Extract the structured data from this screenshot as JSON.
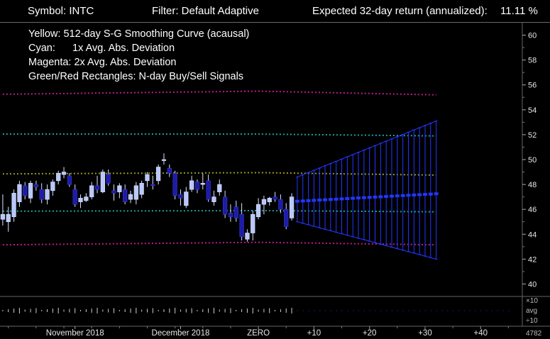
{
  "header": {
    "symbol": "Symbol: INTC",
    "filter": "Filter: Default Adaptive",
    "return_label": "Expected 32-day return (annualized):",
    "return_value": "11.11 %"
  },
  "legend": {
    "yellow": "Yellow: 512-day S-G Smoothing Curve (acausal)",
    "cyan": "Cyan:      1x Avg. Abs. Deviation",
    "magenta": "Magenta: 2x Avg. Abs. Deviation",
    "rects": "Green/Red Rectangles: N-day Buy/Sell Signals"
  },
  "colors": {
    "background": "#000000",
    "candle_up": "#b8c8ff",
    "candle_down": "#1c1ca8",
    "smooth": "#9a9a28",
    "dev1": "#1f9f9f",
    "dev2": "#b81e8c",
    "forecast": "#2436ff",
    "grid": "#666666"
  },
  "chart_data": {
    "type": "candlestick",
    "y_ticks": [
      40,
      42,
      44,
      46,
      48,
      50,
      52,
      54,
      56,
      58,
      60
    ],
    "ylim": [
      39,
      61
    ],
    "x_ticks": [
      {
        "label": "November 2018",
        "x": -33
      },
      {
        "label": "December 2018",
        "x": -14
      },
      {
        "label": "ZERO",
        "x": 0
      },
      {
        "label": "+10",
        "x": 10
      },
      {
        "label": "+20",
        "x": 20
      },
      {
        "label": "+30",
        "x": 30
      },
      {
        "label": "+40",
        "x": 40
      }
    ],
    "xlim": [
      -46.5,
      47.5
    ],
    "candles": [
      {
        "x": -46,
        "o": 45.2,
        "h": 47.2,
        "l": 44.7,
        "c": 45.6
      },
      {
        "x": -45,
        "o": 45.0,
        "h": 46.2,
        "l": 44.2,
        "c": 45.6
      },
      {
        "x": -44,
        "o": 45.4,
        "h": 47.6,
        "l": 45.0,
        "c": 47.3
      },
      {
        "x": -43,
        "o": 46.6,
        "h": 48.3,
        "l": 46.2,
        "c": 48.0
      },
      {
        "x": -42,
        "o": 47.9,
        "h": 48.2,
        "l": 46.8,
        "c": 47.1
      },
      {
        "x": -41,
        "o": 46.9,
        "h": 48.3,
        "l": 46.5,
        "c": 48.1
      },
      {
        "x": -40,
        "o": 48.0,
        "h": 48.3,
        "l": 47.5,
        "c": 47.8
      },
      {
        "x": -39,
        "o": 47.6,
        "h": 48.1,
        "l": 46.5,
        "c": 46.8
      },
      {
        "x": -38,
        "o": 46.8,
        "h": 48.0,
        "l": 46.4,
        "c": 47.6
      },
      {
        "x": -37,
        "o": 47.5,
        "h": 48.4,
        "l": 47.1,
        "c": 48.2
      },
      {
        "x": -36,
        "o": 48.3,
        "h": 49.1,
        "l": 48.0,
        "c": 48.9
      },
      {
        "x": -35,
        "o": 48.8,
        "h": 49.4,
        "l": 48.5,
        "c": 49.0
      },
      {
        "x": -34,
        "o": 48.7,
        "h": 48.9,
        "l": 47.8,
        "c": 48.0
      },
      {
        "x": -33,
        "o": 47.6,
        "h": 48.0,
        "l": 46.2,
        "c": 46.4
      },
      {
        "x": -32,
        "o": 46.6,
        "h": 47.2,
        "l": 46.1,
        "c": 46.9
      },
      {
        "x": -31,
        "o": 46.7,
        "h": 47.3,
        "l": 46.6,
        "c": 47.0
      },
      {
        "x": -30,
        "o": 47.0,
        "h": 48.2,
        "l": 46.8,
        "c": 47.9
      },
      {
        "x": -29,
        "o": 47.9,
        "h": 48.7,
        "l": 47.3,
        "c": 47.6
      },
      {
        "x": -28,
        "o": 47.4,
        "h": 49.2,
        "l": 47.3,
        "c": 49.0
      },
      {
        "x": -27,
        "o": 48.8,
        "h": 49.2,
        "l": 47.9,
        "c": 48.1
      },
      {
        "x": -26,
        "o": 47.5,
        "h": 48.0,
        "l": 46.7,
        "c": 47.3
      },
      {
        "x": -25,
        "o": 47.4,
        "h": 48.1,
        "l": 46.9,
        "c": 47.9
      },
      {
        "x": -24,
        "o": 47.6,
        "h": 48.0,
        "l": 46.4,
        "c": 46.6
      },
      {
        "x": -23,
        "o": 46.8,
        "h": 47.5,
        "l": 46.5,
        "c": 47.2
      },
      {
        "x": -22,
        "o": 46.8,
        "h": 48.2,
        "l": 46.4,
        "c": 47.9
      },
      {
        "x": -21,
        "o": 47.2,
        "h": 48.3,
        "l": 46.9,
        "c": 48.1
      },
      {
        "x": -20,
        "o": 48.3,
        "h": 49.0,
        "l": 47.8,
        "c": 48.8
      },
      {
        "x": -19,
        "o": 48.0,
        "h": 48.7,
        "l": 47.6,
        "c": 47.9
      },
      {
        "x": -18,
        "o": 48.3,
        "h": 49.6,
        "l": 48.0,
        "c": 49.4
      },
      {
        "x": -17,
        "o": 50.0,
        "h": 50.5,
        "l": 49.6,
        "c": 50.0
      },
      {
        "x": -16,
        "o": 49.3,
        "h": 49.6,
        "l": 48.6,
        "c": 48.9
      },
      {
        "x": -15,
        "o": 48.9,
        "h": 49.1,
        "l": 46.8,
        "c": 47.1
      },
      {
        "x": -14,
        "o": 47.2,
        "h": 47.6,
        "l": 46.3,
        "c": 46.9
      },
      {
        "x": -13,
        "o": 46.3,
        "h": 47.8,
        "l": 46.1,
        "c": 47.4
      },
      {
        "x": -12,
        "o": 47.6,
        "h": 48.7,
        "l": 47.4,
        "c": 48.3
      },
      {
        "x": -11,
        "o": 48.2,
        "h": 48.4,
        "l": 47.3,
        "c": 47.6
      },
      {
        "x": -10,
        "o": 48.0,
        "h": 48.9,
        "l": 47.6,
        "c": 48.1
      },
      {
        "x": -9,
        "o": 48.3,
        "h": 48.8,
        "l": 46.6,
        "c": 46.8
      },
      {
        "x": -8,
        "o": 46.6,
        "h": 47.5,
        "l": 46.3,
        "c": 47.0
      },
      {
        "x": -7,
        "o": 47.4,
        "h": 48.4,
        "l": 47.1,
        "c": 48.0
      },
      {
        "x": -6,
        "o": 47.0,
        "h": 47.5,
        "l": 45.3,
        "c": 45.6
      },
      {
        "x": -5,
        "o": 45.7,
        "h": 46.4,
        "l": 45.0,
        "c": 45.4
      },
      {
        "x": -4,
        "o": 46.2,
        "h": 46.7,
        "l": 45.0,
        "c": 45.3
      },
      {
        "x": -3,
        "o": 45.6,
        "h": 46.5,
        "l": 43.5,
        "c": 43.8
      },
      {
        "x": -2,
        "o": 43.6,
        "h": 44.4,
        "l": 43.4,
        "c": 44.1
      },
      {
        "x": -1,
        "o": 44.1,
        "h": 45.9,
        "l": 43.5,
        "c": 45.6
      },
      {
        "x": 0,
        "o": 45.4,
        "h": 46.9,
        "l": 45.2,
        "c": 46.4
      },
      {
        "x": 1,
        "o": 46.4,
        "h": 47.1,
        "l": 45.6,
        "c": 46.8
      },
      {
        "x": 2,
        "o": 46.6,
        "h": 47.0,
        "l": 46.3,
        "c": 46.9
      },
      {
        "x": 3,
        "o": 47.0,
        "h": 47.4,
        "l": 46.6,
        "c": 46.8
      },
      {
        "x": 4,
        "o": 46.8,
        "h": 47.2,
        "l": 45.7,
        "c": 46.0
      },
      {
        "x": 5,
        "o": 46.0,
        "h": 46.5,
        "l": 44.4,
        "c": 44.6
      },
      {
        "x": 6,
        "o": 45.3,
        "h": 47.3,
        "l": 45.1,
        "c": 47.0
      }
    ],
    "bands": {
      "smooth": [
        {
          "x": -46,
          "y": 48.85
        },
        {
          "x": 0,
          "y": 48.95
        },
        {
          "x": 32,
          "y": 48.75
        }
      ],
      "dev1_upper": [
        {
          "x": -46,
          "y": 52.05
        },
        {
          "x": 0,
          "y": 52.05
        },
        {
          "x": 32,
          "y": 51.9
        }
      ],
      "dev1_lower": [
        {
          "x": -46,
          "y": 45.85
        },
        {
          "x": 0,
          "y": 45.9
        },
        {
          "x": 32,
          "y": 45.8
        }
      ],
      "dev2_upper": [
        {
          "x": -46,
          "y": 55.25
        },
        {
          "x": 0,
          "y": 55.5
        },
        {
          "x": 32,
          "y": 55.2
        }
      ],
      "dev2_lower": [
        {
          "x": -46,
          "y": 43.15
        },
        {
          "x": 0,
          "y": 43.35
        },
        {
          "x": 32,
          "y": 43.15
        }
      ]
    },
    "forecast": {
      "start_x": 7,
      "end_x": 32,
      "center_start": 46.65,
      "center_end": 47.25,
      "upper_start": 48.6,
      "upper_end": 53.1,
      "lower_start": 45.0,
      "lower_end": 42.0
    },
    "indicator_labels": [
      "×10",
      "avg",
      "÷10"
    ],
    "volume_readout": "4782"
  }
}
